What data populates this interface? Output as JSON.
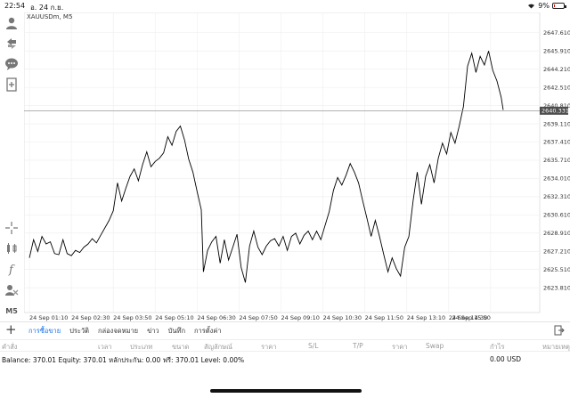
{
  "status_bar": {
    "time": "22:54",
    "date": "อ. 24 ก.ย.",
    "battery": "9%",
    "battery_level": 0.09,
    "battery_color": "#d40000"
  },
  "toolbar": {
    "timeframe": "M5",
    "icons": [
      "account-icon",
      "trade-arrows-icon",
      "chat-icon",
      "add-document-icon",
      "crosshair-icon",
      "indicators-icon",
      "function-icon",
      "objects-icon"
    ]
  },
  "chart": {
    "symbol_label": "XAUUSDm, M5",
    "current_price": "2640.331",
    "current_price_color": "#4d4d4d",
    "line_color": "#000000",
    "grid_color": "#eeeeee"
  },
  "chart_data": {
    "type": "line",
    "title": "XAUUSDm, M5",
    "xlabel": "",
    "ylabel": "",
    "ylim": [
      2621.5,
      2649.5
    ],
    "y_ticks": [
      "2647.610",
      "2645.910",
      "2644.210",
      "2642.510",
      "2640.810",
      "2639.110",
      "2637.410",
      "2635.710",
      "2634.010",
      "2632.310",
      "2630.610",
      "2628.910",
      "2627.210",
      "2625.510",
      "2623.810"
    ],
    "x_ticks": [
      "24 Sep 01:10",
      "24 Sep 02:30",
      "24 Sep 03:50",
      "24 Sep 05:10",
      "24 Sep 06:30",
      "24 Sep 07:50",
      "24 Sep 09:10",
      "24 Sep 10:30",
      "24 Sep 11:50",
      "24 Sep 13:10",
      "24 Sep 14:30",
      "24 Sep 15:50"
    ],
    "x_range": [
      0,
      12
    ],
    "grid": true,
    "current_price": 2640.331,
    "series": [
      {
        "values": [
          [
            0.0,
            2626.6
          ],
          [
            0.1,
            2628.3
          ],
          [
            0.2,
            2627.2
          ],
          [
            0.3,
            2628.6
          ],
          [
            0.4,
            2627.9
          ],
          [
            0.5,
            2628.1
          ],
          [
            0.6,
            2627.0
          ],
          [
            0.7,
            2626.9
          ],
          [
            0.8,
            2628.3
          ],
          [
            0.9,
            2627.0
          ],
          [
            1.0,
            2626.8
          ],
          [
            1.1,
            2627.3
          ],
          [
            1.2,
            2627.1
          ],
          [
            1.3,
            2627.6
          ],
          [
            1.4,
            2627.9
          ],
          [
            1.5,
            2628.4
          ],
          [
            1.6,
            2628.0
          ],
          [
            1.7,
            2628.7
          ],
          [
            1.8,
            2629.4
          ],
          [
            1.9,
            2630.1
          ],
          [
            2.0,
            2631.0
          ],
          [
            2.1,
            2633.6
          ],
          [
            2.2,
            2631.9
          ],
          [
            2.3,
            2633.1
          ],
          [
            2.4,
            2634.2
          ],
          [
            2.5,
            2634.9
          ],
          [
            2.6,
            2633.8
          ],
          [
            2.7,
            2635.3
          ],
          [
            2.8,
            2636.5
          ],
          [
            2.9,
            2635.1
          ],
          [
            3.0,
            2635.6
          ],
          [
            3.1,
            2635.9
          ],
          [
            3.2,
            2636.4
          ],
          [
            3.3,
            2637.9
          ],
          [
            3.4,
            2637.1
          ],
          [
            3.5,
            2638.4
          ],
          [
            3.6,
            2638.9
          ],
          [
            3.7,
            2637.6
          ],
          [
            3.8,
            2635.8
          ],
          [
            3.9,
            2634.6
          ],
          [
            4.0,
            2632.8
          ],
          [
            4.1,
            2631.1
          ],
          [
            4.15,
            2625.3
          ],
          [
            4.25,
            2627.3
          ],
          [
            4.35,
            2628.1
          ],
          [
            4.45,
            2628.6
          ],
          [
            4.55,
            2626.1
          ],
          [
            4.65,
            2628.3
          ],
          [
            4.75,
            2626.4
          ],
          [
            4.85,
            2627.6
          ],
          [
            4.95,
            2628.8
          ],
          [
            5.05,
            2625.7
          ],
          [
            5.15,
            2624.3
          ],
          [
            5.25,
            2627.7
          ],
          [
            5.35,
            2629.1
          ],
          [
            5.45,
            2627.6
          ],
          [
            5.55,
            2626.9
          ],
          [
            5.65,
            2627.7
          ],
          [
            5.75,
            2628.2
          ],
          [
            5.85,
            2628.4
          ],
          [
            5.95,
            2627.7
          ],
          [
            6.05,
            2628.6
          ],
          [
            6.15,
            2627.3
          ],
          [
            6.25,
            2628.6
          ],
          [
            6.35,
            2628.9
          ],
          [
            6.45,
            2627.9
          ],
          [
            6.55,
            2628.7
          ],
          [
            6.65,
            2629.1
          ],
          [
            6.75,
            2628.3
          ],
          [
            6.85,
            2629.1
          ],
          [
            6.95,
            2628.3
          ],
          [
            7.05,
            2629.6
          ],
          [
            7.15,
            2630.9
          ],
          [
            7.25,
            2632.9
          ],
          [
            7.35,
            2634.1
          ],
          [
            7.45,
            2633.4
          ],
          [
            7.55,
            2634.3
          ],
          [
            7.65,
            2635.4
          ],
          [
            7.75,
            2634.6
          ],
          [
            7.85,
            2633.6
          ],
          [
            7.95,
            2631.9
          ],
          [
            8.05,
            2630.3
          ],
          [
            8.15,
            2628.6
          ],
          [
            8.25,
            2630.1
          ],
          [
            8.35,
            2628.6
          ],
          [
            8.45,
            2626.9
          ],
          [
            8.55,
            2625.3
          ],
          [
            8.65,
            2626.6
          ],
          [
            8.75,
            2625.6
          ],
          [
            8.85,
            2624.9
          ],
          [
            8.95,
            2627.6
          ],
          [
            9.05,
            2628.6
          ],
          [
            9.15,
            2631.9
          ],
          [
            9.25,
            2634.6
          ],
          [
            9.35,
            2631.6
          ],
          [
            9.45,
            2634.2
          ],
          [
            9.55,
            2635.3
          ],
          [
            9.65,
            2633.6
          ],
          [
            9.75,
            2635.9
          ],
          [
            9.85,
            2637.3
          ],
          [
            9.95,
            2636.3
          ],
          [
            10.05,
            2638.3
          ],
          [
            10.15,
            2637.3
          ],
          [
            10.25,
            2638.9
          ],
          [
            10.35,
            2640.7
          ],
          [
            10.45,
            2644.5
          ],
          [
            10.55,
            2645.7
          ],
          [
            10.65,
            2643.9
          ],
          [
            10.75,
            2645.4
          ],
          [
            10.85,
            2644.6
          ],
          [
            10.95,
            2645.9
          ],
          [
            11.05,
            2644.1
          ],
          [
            11.15,
            2643.1
          ],
          [
            11.25,
            2641.6
          ],
          [
            11.3,
            2640.4
          ]
        ]
      }
    ]
  },
  "tabs": [
    "การซื้อขาย",
    "ประวัติ",
    "กล่องจดหมาย",
    "ข่าว",
    "บันทึก",
    "การตั้งค่า"
  ],
  "columns": [
    "คำสั่ง",
    "เวลา",
    "ประเภท",
    "ขนาด",
    "สัญลักษณ์",
    "ราคา",
    "S/L",
    "T/P",
    "ราคา",
    "Swap",
    "กำไร",
    "หมายเหตุ"
  ],
  "summary": {
    "text": "Balance: 370.01  Equity: 370.01  หลักประกัน: 0.00  ฟรี: 370.01  Level: 0.00%",
    "profit": "0.00",
    "currency": "USD"
  }
}
